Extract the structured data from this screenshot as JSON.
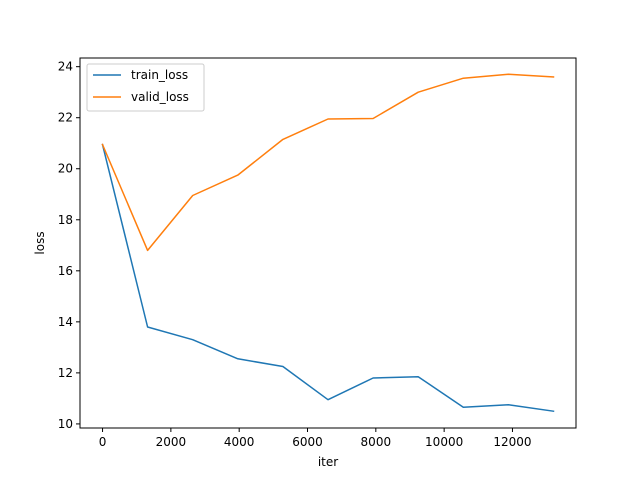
{
  "chart_data": {
    "type": "line",
    "title": "",
    "xlabel": "iter",
    "ylabel": "loss",
    "xlim": [
      -660,
      13860
    ],
    "ylim": [
      9.84,
      24.34
    ],
    "xticks": [
      0,
      2000,
      4000,
      6000,
      8000,
      10000,
      12000
    ],
    "yticks": [
      10,
      12,
      14,
      16,
      18,
      20,
      22,
      24
    ],
    "grid": false,
    "legend_position": "top-left",
    "series": [
      {
        "name": "train_loss",
        "color": "#1f77b4",
        "x": [
          0,
          1320,
          2640,
          3960,
          5280,
          6600,
          7920,
          9240,
          10560,
          11880,
          13200
        ],
        "y": [
          20.95,
          13.8,
          13.3,
          12.55,
          12.25,
          10.95,
          11.8,
          11.85,
          10.65,
          10.75,
          10.5
        ]
      },
      {
        "name": "valid_loss",
        "color": "#ff7f0e",
        "x": [
          0,
          1320,
          2640,
          3960,
          5280,
          6600,
          7920,
          9240,
          10560,
          11880,
          13200
        ],
        "y": [
          20.95,
          16.8,
          18.95,
          19.75,
          21.15,
          21.95,
          21.97,
          23.0,
          23.55,
          23.7,
          23.6
        ]
      }
    ]
  }
}
